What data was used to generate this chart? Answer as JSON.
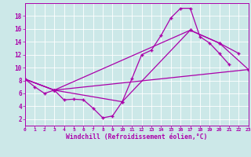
{
  "xlabel": "Windchill (Refroidissement éolien,°C)",
  "bg_color": "#cce8e8",
  "line_color": "#aa00aa",
  "grid_color": "#ffffff",
  "xlim": [
    0,
    23
  ],
  "ylim": [
    1,
    20
  ],
  "xticks": [
    0,
    1,
    2,
    3,
    4,
    5,
    6,
    7,
    8,
    9,
    10,
    11,
    12,
    13,
    14,
    15,
    16,
    17,
    18,
    19,
    20,
    21,
    22,
    23
  ],
  "yticks": [
    2,
    4,
    6,
    8,
    10,
    12,
    14,
    16,
    18
  ],
  "lines": [
    {
      "x": [
        0,
        1,
        2,
        3,
        4,
        5,
        6,
        7,
        8,
        9,
        10,
        11,
        12,
        13,
        14,
        15,
        16,
        17,
        18,
        19,
        20,
        21
      ],
      "y": [
        8.2,
        7.0,
        6.0,
        6.5,
        5.0,
        5.1,
        5.0,
        3.7,
        2.2,
        2.5,
        4.7,
        8.3,
        12.0,
        12.7,
        15.0,
        17.7,
        19.2,
        19.2,
        14.8,
        13.8,
        12.2,
        10.5
      ]
    },
    {
      "x": [
        0,
        3,
        23
      ],
      "y": [
        8.2,
        6.5,
        9.7
      ]
    },
    {
      "x": [
        0,
        3,
        17,
        20,
        22
      ],
      "y": [
        8.2,
        6.5,
        15.8,
        13.8,
        12.2
      ]
    },
    {
      "x": [
        0,
        3,
        10,
        17,
        20,
        23
      ],
      "y": [
        8.2,
        6.5,
        4.7,
        15.8,
        13.8,
        9.7
      ]
    }
  ]
}
